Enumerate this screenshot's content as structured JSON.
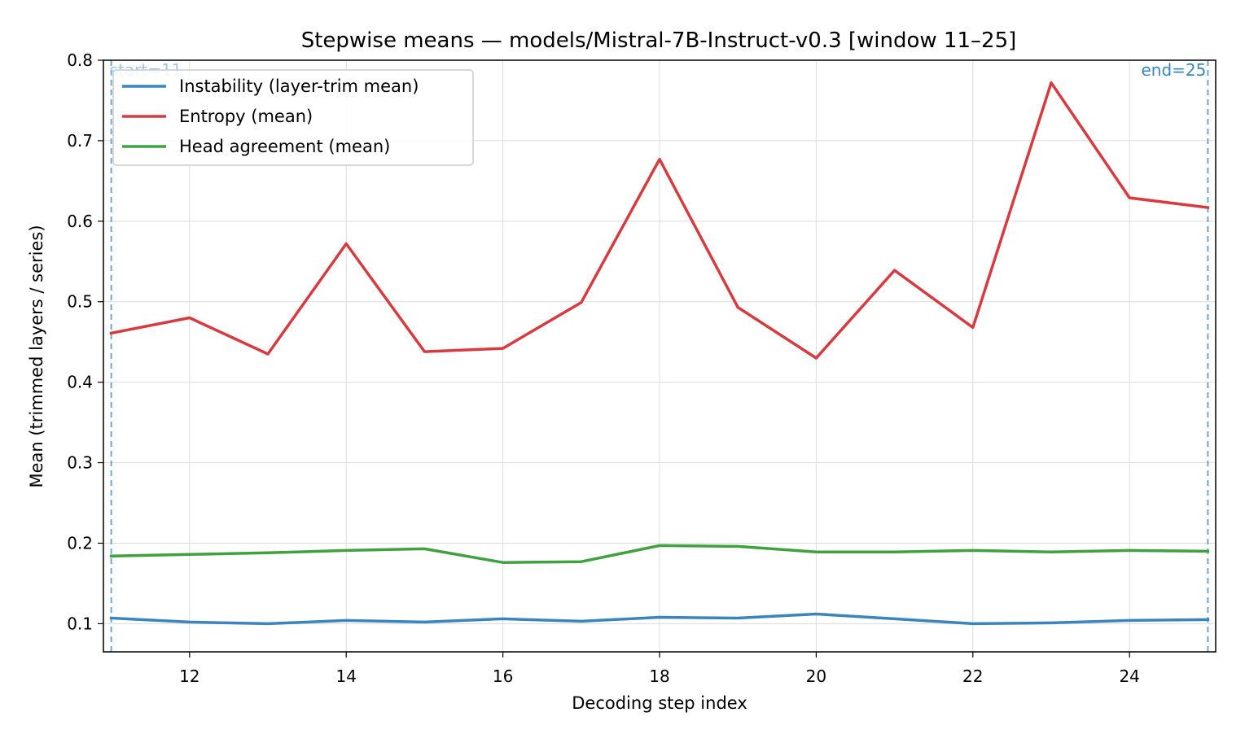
{
  "chart_data": {
    "type": "line",
    "title": "Stepwise means — models/Mistral-7B-Instruct-v0.3  [window 11–25]",
    "xlabel": "Decoding step index",
    "ylabel": "Mean (trimmed layers / series)",
    "xlim": [
      10.9,
      25.1
    ],
    "ylim": [
      0.065,
      0.8
    ],
    "x_ticks": [
      12,
      14,
      16,
      18,
      20,
      22,
      24
    ],
    "x_tick_labels": [
      "12",
      "14",
      "16",
      "18",
      "20",
      "22",
      "24"
    ],
    "y_ticks": [
      0.1,
      0.2,
      0.3,
      0.4,
      0.5,
      0.6,
      0.7,
      0.8
    ],
    "y_tick_labels": [
      "0.1",
      "0.2",
      "0.3",
      "0.4",
      "0.5",
      "0.6",
      "0.7",
      "0.8"
    ],
    "grid": true,
    "legend_position": "top-left",
    "x": [
      11,
      12,
      13,
      14,
      15,
      16,
      17,
      18,
      19,
      20,
      21,
      22,
      23,
      24,
      25
    ],
    "series": [
      {
        "name": "Instability (layer-trim mean)",
        "color": "#3a85bd",
        "values": [
          0.107,
          0.102,
          0.1,
          0.104,
          0.102,
          0.106,
          0.103,
          0.108,
          0.107,
          0.112,
          0.106,
          0.1,
          0.101,
          0.104,
          0.105
        ]
      },
      {
        "name": "Entropy (mean)",
        "color": "#d63b3f",
        "values": [
          0.461,
          0.48,
          0.435,
          0.572,
          0.438,
          0.442,
          0.499,
          0.677,
          0.493,
          0.43,
          0.539,
          0.468,
          0.772,
          0.629,
          0.617
        ]
      },
      {
        "name": "Head agreement (mean)",
        "color": "#3fa23f",
        "values": [
          0.184,
          0.186,
          0.188,
          0.191,
          0.193,
          0.176,
          0.177,
          0.197,
          0.196,
          0.189,
          0.189,
          0.191,
          0.189,
          0.191,
          0.19
        ]
      }
    ],
    "annotations": [
      {
        "text": "start=11",
        "x": 11,
        "color": "#9ecae1"
      },
      {
        "text": "end=25",
        "x": 25,
        "color": "#3a85bd"
      }
    ]
  }
}
